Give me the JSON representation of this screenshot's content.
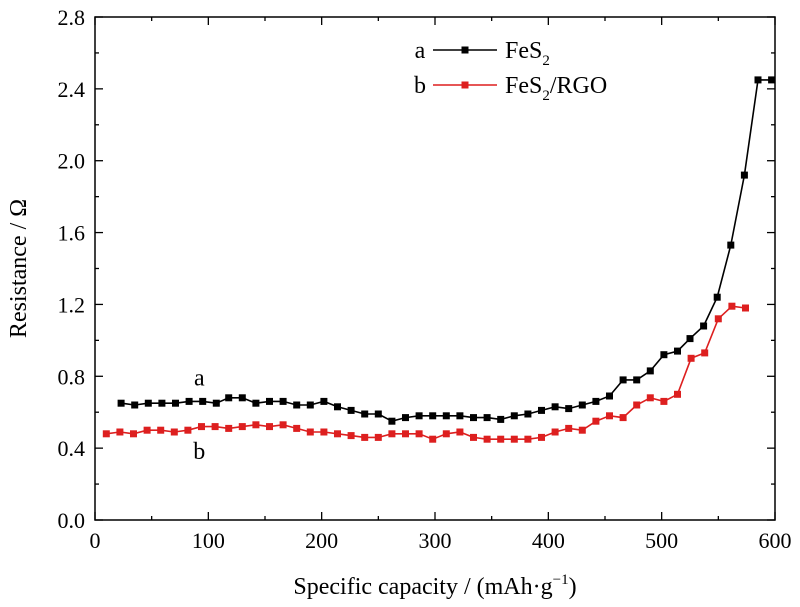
{
  "chart_data": {
    "type": "line",
    "xlabel": "Specific capacity / (mAh·g",
    "xlabel_sup": "−1",
    "xlabel_end": ")",
    "ylabel": "Resistance / Ω",
    "xlim": [
      0,
      600
    ],
    "ylim": [
      0,
      2.8
    ],
    "xticks": [
      0,
      100,
      200,
      300,
      400,
      500,
      600
    ],
    "xtick_labels": [
      "0",
      "100",
      "200",
      "300",
      "400",
      "500",
      "600"
    ],
    "yticks": [
      0,
      0.4,
      0.8,
      1.2,
      1.6,
      2.0,
      2.4,
      2.8
    ],
    "ytick_labels": [
      "0.0",
      "0.4",
      "0.8",
      "1.2",
      "1.6",
      "2.0",
      "2.4",
      "2.8"
    ],
    "grid": false,
    "legend_position": "top-right",
    "series": [
      {
        "id": "a",
        "legend_letter": "a",
        "name_main": "FeS",
        "name_sub": "2",
        "name_rest": "",
        "color": "#000000",
        "marker": "square",
        "x": [
          23,
          35,
          47,
          59,
          71,
          83,
          95,
          107,
          118,
          130,
          142,
          154,
          166,
          178,
          190,
          202,
          214,
          226,
          238,
          250,
          262,
          274,
          286,
          298,
          310,
          322,
          334,
          346,
          358,
          370,
          382,
          394,
          406,
          418,
          430,
          442,
          454,
          466,
          478,
          490,
          502,
          514,
          525,
          537,
          549,
          561,
          573,
          585,
          597
        ],
        "y": [
          0.65,
          0.64,
          0.65,
          0.65,
          0.65,
          0.66,
          0.66,
          0.65,
          0.68,
          0.68,
          0.65,
          0.66,
          0.66,
          0.64,
          0.64,
          0.66,
          0.63,
          0.61,
          0.59,
          0.59,
          0.55,
          0.57,
          0.58,
          0.58,
          0.58,
          0.58,
          0.57,
          0.57,
          0.56,
          0.58,
          0.59,
          0.61,
          0.63,
          0.62,
          0.64,
          0.66,
          0.69,
          0.78,
          0.78,
          0.83,
          0.92,
          0.94,
          1.01,
          1.08,
          1.24,
          1.53,
          1.92,
          2.45,
          2.45
        ]
      },
      {
        "id": "b",
        "legend_letter": "b",
        "name_main": "FeS",
        "name_sub": "2",
        "name_rest": "/RGO",
        "color": "#dd1f1f",
        "marker": "square",
        "x": [
          10,
          22,
          34,
          46,
          58,
          70,
          82,
          94,
          106,
          118,
          130,
          142,
          154,
          166,
          178,
          190,
          202,
          214,
          226,
          238,
          250,
          262,
          274,
          286,
          298,
          310,
          322,
          334,
          346,
          358,
          370,
          382,
          394,
          406,
          418,
          430,
          442,
          454,
          466,
          478,
          490,
          502,
          514,
          526,
          538,
          550,
          562,
          574
        ],
        "y": [
          0.48,
          0.49,
          0.48,
          0.5,
          0.5,
          0.49,
          0.5,
          0.52,
          0.52,
          0.51,
          0.52,
          0.53,
          0.52,
          0.53,
          0.51,
          0.49,
          0.49,
          0.48,
          0.47,
          0.46,
          0.46,
          0.48,
          0.48,
          0.48,
          0.45,
          0.48,
          0.49,
          0.46,
          0.45,
          0.45,
          0.45,
          0.45,
          0.46,
          0.49,
          0.51,
          0.5,
          0.55,
          0.58,
          0.57,
          0.64,
          0.68,
          0.66,
          0.7,
          0.9,
          0.93,
          1.12,
          1.19,
          1.18
        ]
      }
    ],
    "annotations": [
      {
        "text": "a",
        "x": 92,
        "y": 0.75
      },
      {
        "text": "b",
        "x": 92,
        "y": 0.34
      }
    ]
  }
}
